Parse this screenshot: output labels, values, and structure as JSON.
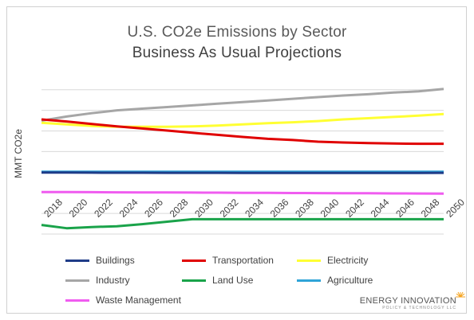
{
  "title_line1": "U.S. CO2e Emissions by Sector",
  "title_line2": "Business As Usual Projections",
  "logo": {
    "name": "ENERGY INNOVATION",
    "tagline": "POLICY & TECHNOLOGY LLC"
  },
  "chart_data": {
    "type": "line",
    "ylabel": "MMT CO2e",
    "xlabel": "",
    "grid": true,
    "legend_placement": "bottom",
    "x": [
      2018,
      2020,
      2022,
      2024,
      2026,
      2028,
      2030,
      2032,
      2034,
      2036,
      2038,
      2040,
      2042,
      2044,
      2046,
      2048,
      2050
    ],
    "x_tick_labels": [
      "2018",
      "2020",
      "2022",
      "2024",
      "2026",
      "2028",
      "2030",
      "2032",
      "2034",
      "2036",
      "2038",
      "2040",
      "2042",
      "2044",
      "2046",
      "2048",
      "2050"
    ],
    "series": [
      {
        "name": "Buildings",
        "color": "#1f3c88",
        "values": [
          590,
          590,
          588,
          587,
          586,
          585,
          585,
          585,
          583,
          583,
          583,
          583,
          583,
          583,
          583,
          583,
          585
        ]
      },
      {
        "name": "Transportation",
        "color": "#e00000",
        "values": [
          1880,
          1830,
          1770,
          1710,
          1660,
          1610,
          1555,
          1505,
          1455,
          1410,
          1380,
          1340,
          1320,
          1305,
          1295,
          1290,
          1290
        ]
      },
      {
        "name": "Electricity",
        "color": "#ffff33",
        "values": [
          1800,
          1760,
          1720,
          1700,
          1700,
          1700,
          1710,
          1730,
          1760,
          1790,
          1810,
          1840,
          1880,
          1910,
          1940,
          1970,
          2010
        ]
      },
      {
        "name": "Industry",
        "color": "#a6a6a6",
        "values": [
          1850,
          1950,
          2030,
          2100,
          2140,
          2180,
          2220,
          2260,
          2300,
          2340,
          2380,
          2420,
          2460,
          2490,
          2530,
          2560,
          2620
        ]
      },
      {
        "name": "Land Use",
        "color": "#1aa34a",
        "values": [
          -680,
          -760,
          -730,
          -710,
          -660,
          -600,
          -540,
          -540,
          -540,
          -540,
          -540,
          -540,
          -540,
          -540,
          -540,
          -540,
          -540
        ]
      },
      {
        "name": "Agriculture",
        "color": "#2fa4d8",
        "values": [
          610,
          612,
          612,
          612,
          612,
          612,
          612,
          612,
          612,
          612,
          612,
          612,
          612,
          612,
          612,
          612,
          612
        ]
      },
      {
        "name": "Waste Management",
        "color": "#f05cf0",
        "values": [
          120,
          118,
          115,
          112,
          110,
          108,
          105,
          103,
          100,
          98,
          95,
          93,
          90,
          88,
          85,
          82,
          80
        ]
      }
    ],
    "ylim": [
      -900,
      3000
    ]
  }
}
